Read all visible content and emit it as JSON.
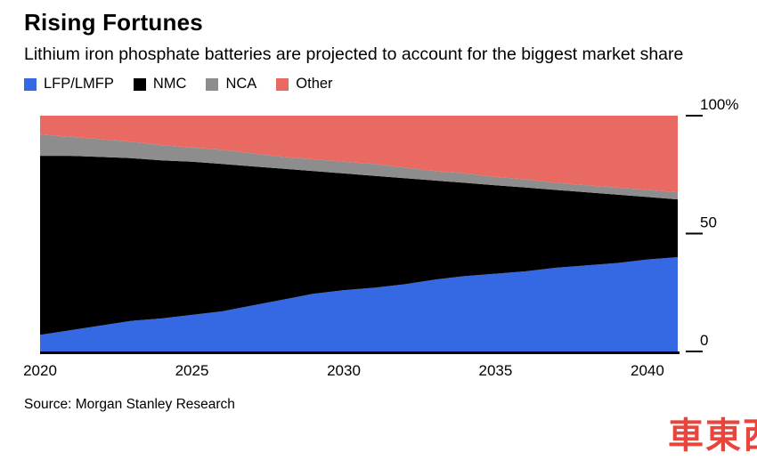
{
  "header": {
    "title": "Rising Fortunes",
    "subtitle": "Lithium iron phosphate batteries are projected to account for the biggest market share"
  },
  "chart_data": {
    "type": "area",
    "stacked": true,
    "title": "Rising Fortunes",
    "subtitle": "Lithium iron phosphate batteries are projected to account for the biggest market share",
    "unit": "%",
    "grid": false,
    "legend_position": "top",
    "ylim": [
      0,
      100
    ],
    "x": [
      2020,
      2021,
      2022,
      2023,
      2024,
      2025,
      2026,
      2027,
      2028,
      2029,
      2030,
      2031,
      2032,
      2033,
      2034,
      2035,
      2036,
      2037,
      2038,
      2039,
      2040,
      2041
    ],
    "series": [
      {
        "name": "LFP/LMFP",
        "color": "#3569e3",
        "values": [
          7,
          9,
          11,
          13,
          14,
          15.5,
          17,
          19.5,
          22,
          24.5,
          26,
          27,
          28.5,
          30.5,
          32,
          33,
          34,
          35.5,
          36.5,
          37.5,
          39,
          40
        ]
      },
      {
        "name": "NMC",
        "color": "#000000",
        "values": [
          76,
          74,
          71.5,
          69,
          67,
          65,
          62.5,
          59,
          55.5,
          52,
          49.5,
          47.5,
          45,
          42,
          39.5,
          37.5,
          35.5,
          33,
          31,
          29,
          26.5,
          24.5
        ]
      },
      {
        "name": "NCA",
        "color": "#8d8d8d",
        "values": [
          9,
          8,
          7.5,
          7,
          6.5,
          6,
          6,
          5.5,
          5,
          5,
          5,
          5,
          4.5,
          4,
          4,
          3.5,
          3.5,
          3,
          3,
          3,
          3,
          3
        ]
      },
      {
        "name": "Other",
        "color": "#e96a63",
        "values": [
          8,
          9,
          10,
          11,
          12.5,
          13.5,
          14.5,
          16,
          17.5,
          18.5,
          19.5,
          20.5,
          22,
          23.5,
          24.5,
          26,
          27,
          28.5,
          29.5,
          30.5,
          31.5,
          32.5
        ]
      }
    ],
    "xticks": [
      2020,
      2025,
      2030,
      2035,
      2040
    ],
    "yticks": [
      {
        "label": "100%",
        "value": 100
      },
      {
        "label": "50",
        "value": 50
      },
      {
        "label": "0",
        "value": 0
      }
    ]
  },
  "footer": {
    "source": "Source: Morgan Stanley Research",
    "watermark": "車東西"
  }
}
